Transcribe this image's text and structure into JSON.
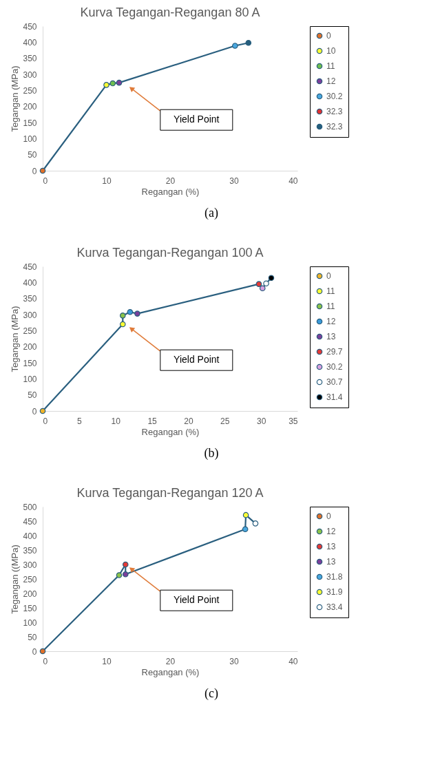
{
  "chart_data": [
    {
      "type": "line",
      "title": "Kurva Tegangan-Regangan 80 A",
      "xlabel": "Regangan (%)",
      "ylabel": "Tegangan (MPa)",
      "xlim": [
        0,
        40
      ],
      "xticks": [
        0,
        10,
        20,
        30,
        40
      ],
      "ylim": [
        0,
        450
      ],
      "yticks": [
        0,
        50,
        100,
        150,
        200,
        250,
        300,
        350,
        400,
        450
      ],
      "grid": false,
      "legend": "right",
      "line_style": "solid",
      "series": [
        {
          "color": "#2a5f7f",
          "x": [
            0,
            10,
            11,
            12,
            30.2,
            32.3
          ],
          "values": [
            0,
            267,
            272,
            274,
            389,
            398
          ]
        },
        {
          "type": "scatter",
          "marker": "circle",
          "name": "0",
          "color": "#e0702a",
          "x": [
            0
          ],
          "values": [
            0
          ]
        },
        {
          "type": "scatter",
          "marker": "circle",
          "name": "10",
          "color": "#ffff33",
          "x": [
            10
          ],
          "values": [
            267
          ]
        },
        {
          "type": "scatter",
          "marker": "circle",
          "name": "11",
          "color": "#6fbf4f",
          "x": [
            11
          ],
          "values": [
            272
          ]
        },
        {
          "type": "scatter",
          "marker": "circle",
          "name": "12",
          "color": "#7b3f9a",
          "x": [
            12
          ],
          "values": [
            274
          ]
        },
        {
          "type": "scatter",
          "marker": "circle",
          "name": "30.2",
          "color": "#4aa8e0",
          "x": [
            30.2
          ],
          "values": [
            389
          ]
        },
        {
          "type": "scatter",
          "marker": "circle",
          "name": "32.3",
          "color": "#e03030",
          "x": [
            null
          ],
          "values": [
            null
          ]
        },
        {
          "type": "scatter",
          "marker": "circle",
          "name": "32.3",
          "color": "#255e7d",
          "x": [
            32.3
          ],
          "values": [
            398
          ]
        }
      ],
      "annotations": [
        "Yield Point",
        "(a)"
      ]
    },
    {
      "type": "line",
      "title": "Kurva Tegangan-Regangan 100 A",
      "xlabel": "Regangan (%)",
      "ylabel": "Tegangan (MPa)",
      "xlim": [
        0,
        35
      ],
      "xticks": [
        0,
        5,
        10,
        15,
        20,
        25,
        30,
        35
      ],
      "ylim": [
        0,
        450
      ],
      "yticks": [
        0,
        50,
        100,
        150,
        200,
        250,
        300,
        350,
        400,
        450
      ],
      "grid": false,
      "legend": "right",
      "line_style": "solid",
      "series": [
        {
          "color": "#2a5f7f",
          "x": [
            0,
            11,
            11,
            12,
            13,
            29.7,
            30.2,
            30.7,
            31.4
          ],
          "values": [
            0,
            270,
            297,
            308,
            303,
            395,
            382,
            397,
            414
          ]
        },
        {
          "type": "scatter",
          "marker": "circle",
          "name": "0",
          "color": "#f0b429",
          "x": [
            0
          ],
          "values": [
            0
          ]
        },
        {
          "type": "scatter",
          "marker": "circle",
          "name": "11",
          "color": "#ffff33",
          "x": [
            11
          ],
          "values": [
            270
          ]
        },
        {
          "type": "scatter",
          "marker": "circle",
          "name": "11",
          "color": "#8bc34a",
          "x": [
            11
          ],
          "values": [
            297
          ]
        },
        {
          "type": "scatter",
          "marker": "circle",
          "name": "12",
          "color": "#3a9ad9",
          "x": [
            12
          ],
          "values": [
            308
          ]
        },
        {
          "type": "scatter",
          "marker": "circle",
          "name": "13",
          "color": "#7b3f9a",
          "x": [
            13
          ],
          "values": [
            303
          ]
        },
        {
          "type": "scatter",
          "marker": "circle",
          "name": "29.7",
          "color": "#e53935",
          "x": [
            29.7
          ],
          "values": [
            395
          ]
        },
        {
          "type": "scatter",
          "marker": "circle",
          "name": "30.2",
          "color": "#d8a0e0",
          "x": [
            30.2
          ],
          "values": [
            382
          ]
        },
        {
          "type": "scatter",
          "marker": "circle",
          "name": "30.7",
          "color": "#ffffff",
          "x": [
            30.7
          ],
          "values": [
            397
          ]
        },
        {
          "type": "scatter",
          "marker": "circle",
          "name": "31.4",
          "color": "#000000",
          "x": [
            31.4
          ],
          "values": [
            414
          ]
        }
      ],
      "annotations": [
        "Yield Point",
        "(b)"
      ]
    },
    {
      "type": "line",
      "title": "Kurva Tegangan-Regangan 120 A",
      "xlabel": "Regangan (%)",
      "ylabel": "Tegangan ((MPa)",
      "xlim": [
        0,
        40
      ],
      "xticks": [
        0,
        10,
        20,
        30,
        40
      ],
      "ylim": [
        0,
        500
      ],
      "yticks": [
        0,
        50,
        100,
        150,
        200,
        250,
        300,
        350,
        400,
        450,
        500
      ],
      "grid": false,
      "legend": "right",
      "line_style": "solid",
      "series": [
        {
          "color": "#2a5f7f",
          "x": [
            0,
            12,
            13,
            13,
            31.8,
            31.9,
            33.4
          ],
          "values": [
            0,
            263,
            300,
            266,
            422,
            471,
            442
          ]
        },
        {
          "type": "scatter",
          "marker": "circle",
          "name": "0",
          "color": "#e0702a",
          "x": [
            0
          ],
          "values": [
            0
          ]
        },
        {
          "type": "scatter",
          "marker": "circle",
          "name": "12",
          "color": "#8bc34a",
          "x": [
            12
          ],
          "values": [
            263
          ]
        },
        {
          "type": "scatter",
          "marker": "circle",
          "name": "13",
          "color": "#e53935",
          "x": [
            13
          ],
          "values": [
            300
          ]
        },
        {
          "type": "scatter",
          "marker": "circle",
          "name": "13",
          "color": "#7b3f9a",
          "x": [
            13
          ],
          "values": [
            266
          ]
        },
        {
          "type": "scatter",
          "marker": "circle",
          "name": "31.8",
          "color": "#4aa8e0",
          "x": [
            31.8
          ],
          "values": [
            422
          ]
        },
        {
          "type": "scatter",
          "marker": "circle",
          "name": "31.9",
          "color": "#ffff33",
          "x": [
            31.9
          ],
          "values": [
            471
          ]
        },
        {
          "type": "scatter",
          "marker": "circle",
          "name": "33.4",
          "color": "#ffffff",
          "x": [
            33.4
          ],
          "values": [
            442
          ]
        }
      ],
      "annotations": [
        "Yield Point",
        "(c)"
      ]
    }
  ]
}
